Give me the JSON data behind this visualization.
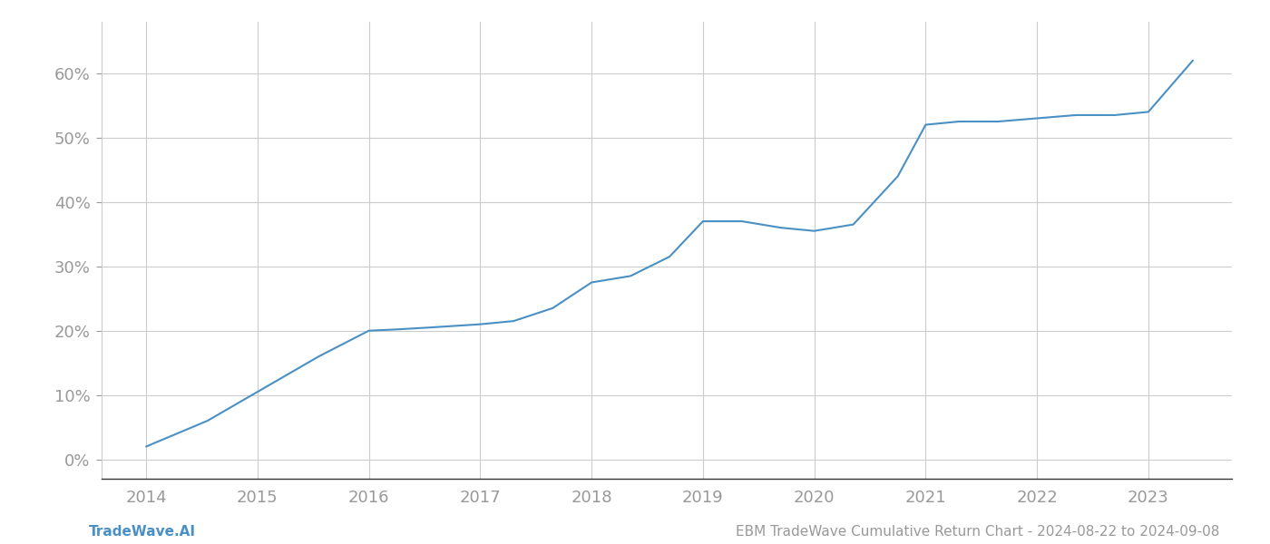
{
  "x": [
    2014.0,
    2014.55,
    2015.0,
    2015.55,
    2016.0,
    2016.25,
    2016.55,
    2017.0,
    2017.3,
    2017.65,
    2018.0,
    2018.35,
    2018.7,
    2019.0,
    2019.35,
    2019.7,
    2020.0,
    2020.35,
    2020.75,
    2021.0,
    2021.3,
    2021.65,
    2022.0,
    2022.35,
    2022.7,
    2023.0,
    2023.4
  ],
  "y": [
    2.0,
    6.0,
    10.5,
    16.0,
    20.0,
    20.2,
    20.5,
    21.0,
    21.5,
    23.5,
    27.5,
    28.5,
    31.5,
    37.0,
    37.0,
    36.0,
    35.5,
    36.5,
    44.0,
    52.0,
    52.5,
    52.5,
    53.0,
    53.5,
    53.5,
    54.0,
    62.0
  ],
  "line_color": "#4a90c4",
  "line_width": 1.5,
  "background_color": "#ffffff",
  "grid_color": "#cccccc",
  "footer_left": "TradeWave.AI",
  "footer_right": "EBM TradeWave Cumulative Return Chart - 2024-08-22 to 2024-09-08",
  "xlim": [
    2013.6,
    2023.75
  ],
  "ylim": [
    -3,
    68
  ],
  "xticks": [
    2014,
    2015,
    2016,
    2017,
    2018,
    2019,
    2020,
    2021,
    2022,
    2023
  ],
  "yticks": [
    0,
    10,
    20,
    30,
    40,
    50,
    60
  ],
  "tick_label_color": "#999999",
  "tick_label_size": 13,
  "footer_left_color": "#4a90c4",
  "footer_right_color": "#999999",
  "footer_size": 11
}
